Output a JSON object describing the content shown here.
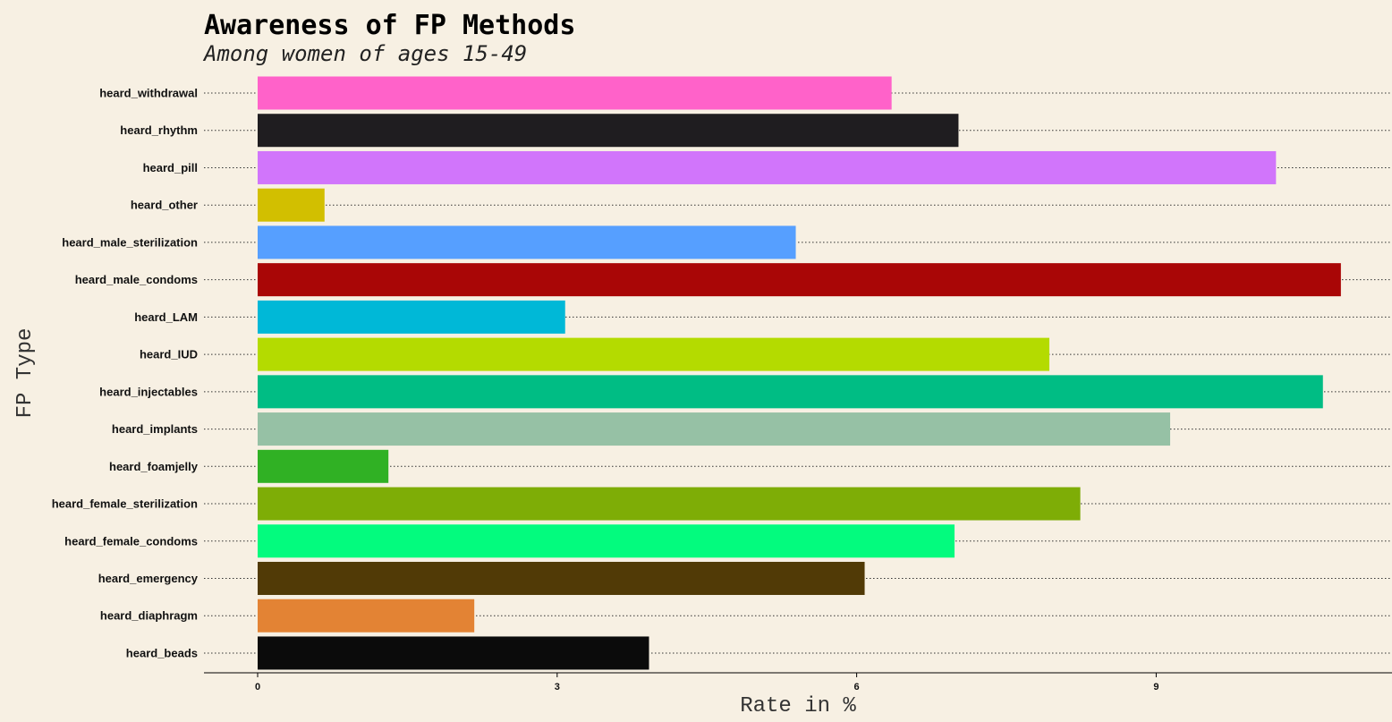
{
  "chart_data": {
    "type": "bar",
    "orientation": "horizontal",
    "title": "Awareness of FP Methods",
    "subtitle": "Among women of ages 15-49",
    "xlabel": "Rate in %",
    "ylabel": "FP Type",
    "xlim": [
      0,
      11.4
    ],
    "xticks": [
      0,
      3,
      6,
      9
    ],
    "grid": "dotted horizontal",
    "categories": [
      "heard_withdrawal",
      "heard_rhythm",
      "heard_pill",
      "heard_other",
      "heard_male_sterilization",
      "heard_male_condoms",
      "heard_LAM",
      "heard_IUD",
      "heard_injectables",
      "heard_implants",
      "heard_foamjelly",
      "heard_female_sterilization",
      "heard_female_condoms",
      "heard_emergency",
      "heard_diaphragm",
      "heard_beads"
    ],
    "values": [
      6.35,
      7.02,
      10.2,
      0.67,
      5.39,
      10.85,
      3.08,
      7.93,
      10.67,
      9.14,
      1.31,
      8.24,
      6.98,
      6.08,
      2.17,
      3.92
    ],
    "colors": [
      "#ff62c9",
      "#1f1d20",
      "#d175fb",
      "#d2bf00",
      "#569fff",
      "#a90606",
      "#00b8d7",
      "#b4db00",
      "#00bd84",
      "#96c1a5",
      "#30b124",
      "#7ead06",
      "#03fb7e",
      "#513a06",
      "#e38334",
      "#0b0b0b"
    ]
  }
}
